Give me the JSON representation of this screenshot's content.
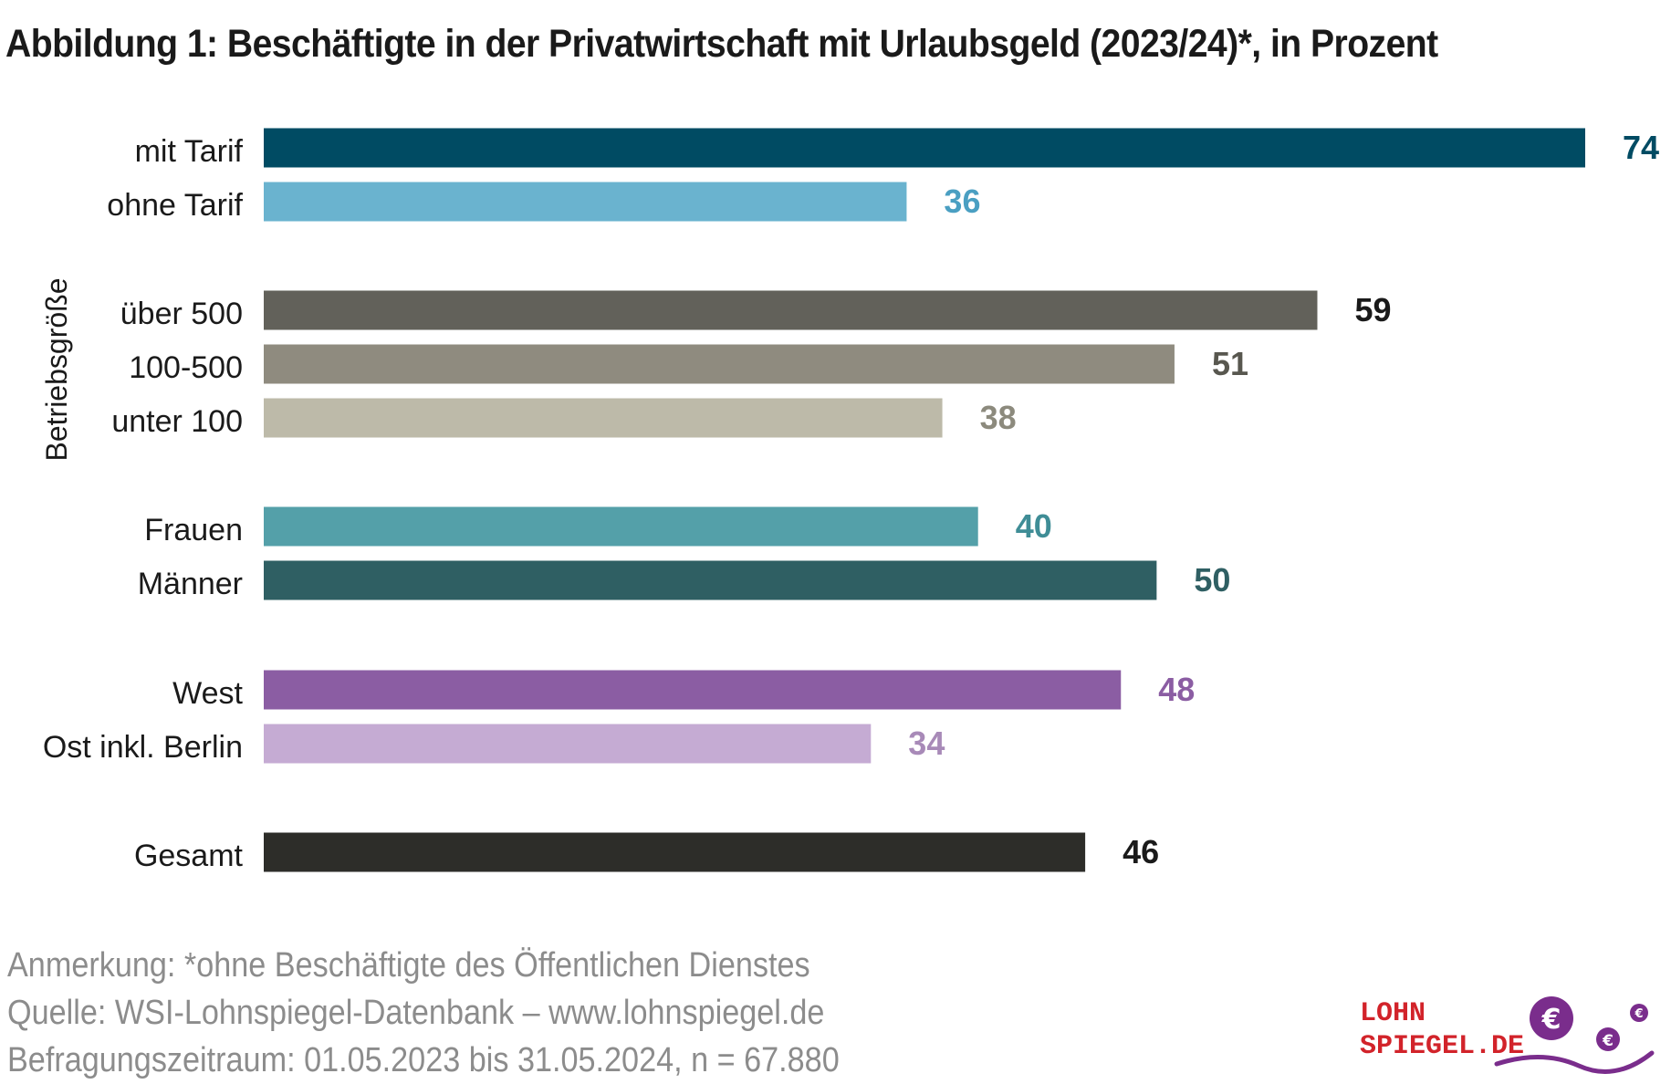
{
  "title": "Abbildung 1:  Beschäftigte in der Privatwirtschaft mit Urlaubsgeld (2023/24)*, in Prozent",
  "chart_data": {
    "type": "bar",
    "orientation": "horizontal",
    "title": "Abbildung 1:  Beschäftigte in der Privatwirtschaft mit Urlaubsgeld (2023/24)*, in Prozent",
    "xlim": [
      0,
      74
    ],
    "grid": false,
    "group_label": "Betriebsgröße",
    "categories": [
      "mit Tarif",
      "ohne Tarif",
      "über 500",
      "100-500",
      "unter 100",
      "Frauen",
      "Männer",
      "West",
      "Ost inkl. Berlin",
      "Gesamt"
    ],
    "values": [
      74,
      36,
      59,
      51,
      38,
      40,
      50,
      48,
      34,
      46
    ],
    "bar_colors": [
      "#004b63",
      "#6ab3cf",
      "#62615a",
      "#8f8b7f",
      "#bdbaa9",
      "#54a0a9",
      "#2f5f63",
      "#8b5da3",
      "#c5abd3",
      "#2d2d29"
    ],
    "label_colors": [
      "#004b63",
      "#4a9fc2",
      "#1a1a1a",
      "#58574f",
      "#8c8a7d",
      "#3f8d96",
      "#2f5f63",
      "#8b5da3",
      "#a88ab8",
      "#1a1a1a"
    ]
  },
  "notes": [
    "Anmerkung: *ohne Beschäftigte des Öffentlichen Dienstes",
    "Quelle:  WSI-Lohnspiegel-Datenbank – www.lohnspiegel.de",
    "Befragungszeitraum: 01.05.2023 bis 31.05.2024, n = 67.880"
  ],
  "logo": {
    "line1": "LOHN",
    "line2": "SPIEGEL.DE",
    "text_color": "#d2232a",
    "accent_color": "#7a2d8c"
  }
}
